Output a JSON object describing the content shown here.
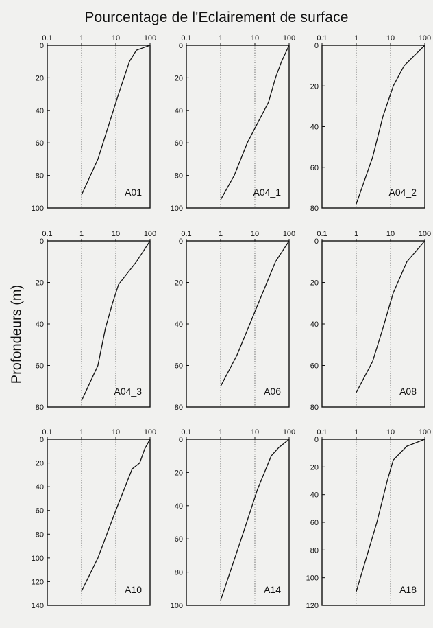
{
  "title": "Pourcentage de l'Eclairement de surface",
  "ylabel": "Profondeurs  (m)",
  "chart_data": [
    {
      "type": "line",
      "name": "A01",
      "x_ticks": [
        "0.1",
        "1",
        "10",
        "100"
      ],
      "y_ticks": [
        "0",
        "20",
        "40",
        "60",
        "80",
        "100"
      ],
      "xlim": [
        0.1,
        100
      ],
      "ylim": [
        0,
        100
      ],
      "x_scale": "log",
      "y_inverted": true,
      "series": [
        {
          "x": [
            100,
            40,
            25,
            12,
            6,
            3,
            1
          ],
          "y": [
            0,
            3,
            10,
            30,
            50,
            70,
            92
          ]
        }
      ]
    },
    {
      "type": "line",
      "name": "A04_1",
      "x_ticks": [
        "0.1",
        "1",
        "10",
        "100"
      ],
      "y_ticks": [
        "0",
        "20",
        "40",
        "60",
        "80",
        "100"
      ],
      "xlim": [
        0.1,
        100
      ],
      "ylim": [
        0,
        100
      ],
      "x_scale": "log",
      "y_inverted": true,
      "series": [
        {
          "x": [
            100,
            60,
            40,
            25,
            6,
            2.5,
            1
          ],
          "y": [
            0,
            10,
            20,
            35,
            60,
            80,
            95
          ]
        }
      ]
    },
    {
      "type": "line",
      "name": "A04_2",
      "x_ticks": [
        "0.1",
        "1",
        "10",
        "100"
      ],
      "y_ticks": [
        "0",
        "20",
        "40",
        "60",
        "80"
      ],
      "xlim": [
        0.1,
        100
      ],
      "ylim": [
        0,
        80
      ],
      "x_scale": "log",
      "y_inverted": true,
      "series": [
        {
          "x": [
            100,
            50,
            25,
            12,
            6,
            3,
            1
          ],
          "y": [
            0,
            5,
            10,
            20,
            35,
            55,
            78
          ]
        }
      ]
    },
    {
      "type": "line",
      "name": "A04_3",
      "x_ticks": [
        "0.1",
        "1",
        "10",
        "100"
      ],
      "y_ticks": [
        "0",
        "20",
        "40",
        "60",
        "80"
      ],
      "xlim": [
        0.1,
        100
      ],
      "ylim": [
        0,
        80
      ],
      "x_scale": "log",
      "y_inverted": true,
      "series": [
        {
          "x": [
            100,
            40,
            12,
            8,
            5,
            3,
            1
          ],
          "y": [
            0,
            10,
            21,
            30,
            42,
            60,
            77
          ]
        }
      ]
    },
    {
      "type": "line",
      "name": "A06",
      "x_ticks": [
        "0.1",
        "1",
        "10",
        "100"
      ],
      "y_ticks": [
        "0",
        "20",
        "40",
        "60",
        "80"
      ],
      "xlim": [
        0.1,
        100
      ],
      "ylim": [
        0,
        80
      ],
      "x_scale": "log",
      "y_inverted": true,
      "series": [
        {
          "x": [
            100,
            40,
            20,
            8,
            3,
            1
          ],
          "y": [
            0,
            10,
            22,
            38,
            55,
            70
          ]
        }
      ]
    },
    {
      "type": "line",
      "name": "A08",
      "x_ticks": [
        "0.1",
        "1",
        "10",
        "100"
      ],
      "y_ticks": [
        "0",
        "20",
        "40",
        "60",
        "80"
      ],
      "xlim": [
        0.1,
        100
      ],
      "ylim": [
        0,
        80
      ],
      "x_scale": "log",
      "y_inverted": true,
      "series": [
        {
          "x": [
            100,
            30,
            12,
            6,
            3,
            1
          ],
          "y": [
            0,
            10,
            25,
            42,
            58,
            73
          ]
        }
      ]
    },
    {
      "type": "line",
      "name": "A10",
      "x_ticks": [
        "0.1",
        "1",
        "10",
        "100"
      ],
      "y_ticks": [
        "0",
        "20",
        "40",
        "60",
        "80",
        "100",
        "120",
        "140"
      ],
      "xlim": [
        0.1,
        100
      ],
      "ylim": [
        0,
        140
      ],
      "x_scale": "log",
      "y_inverted": true,
      "series": [
        {
          "x": [
            100,
            70,
            50,
            30,
            10,
            3,
            1
          ],
          "y": [
            0,
            8,
            20,
            25,
            60,
            100,
            128
          ]
        }
      ]
    },
    {
      "type": "line",
      "name": "A14",
      "x_ticks": [
        "0.1",
        "1",
        "10",
        "100"
      ],
      "y_ticks": [
        "0",
        "20",
        "40",
        "60",
        "80",
        "100"
      ],
      "xlim": [
        0.1,
        100
      ],
      "ylim": [
        0,
        100
      ],
      "x_scale": "log",
      "y_inverted": true,
      "series": [
        {
          "x": [
            100,
            50,
            30,
            12,
            4,
            1
          ],
          "y": [
            0,
            5,
            10,
            30,
            60,
            97
          ]
        }
      ]
    },
    {
      "type": "line",
      "name": "A18",
      "x_ticks": [
        "0.1",
        "1",
        "10",
        "100"
      ],
      "y_ticks": [
        "0",
        "20",
        "40",
        "60",
        "80",
        "100",
        "120"
      ],
      "xlim": [
        0.1,
        100
      ],
      "ylim": [
        0,
        120
      ],
      "x_scale": "log",
      "y_inverted": true,
      "series": [
        {
          "x": [
            100,
            30,
            12,
            8,
            4,
            1
          ],
          "y": [
            0,
            5,
            15,
            30,
            60,
            110
          ]
        }
      ]
    }
  ]
}
